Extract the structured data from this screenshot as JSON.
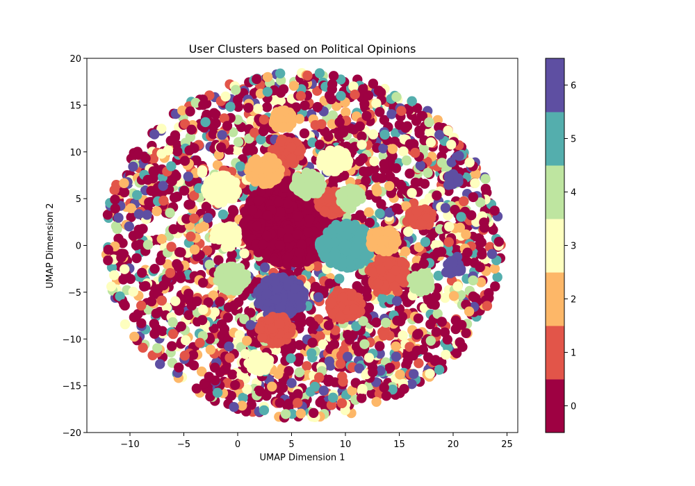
{
  "chart_data": {
    "type": "scatter",
    "title": "User Clusters based on Political Opinions",
    "xlabel": "UMAP Dimension 1",
    "ylabel": "UMAP Dimension 2",
    "xlim": [
      -14,
      26
    ],
    "ylim": [
      -20,
      20
    ],
    "xticks": [
      -10,
      -5,
      0,
      5,
      10,
      15,
      20,
      25
    ],
    "yticks": [
      -20,
      -15,
      -10,
      -5,
      0,
      5,
      10,
      15,
      20
    ],
    "colorbar": {
      "ticks": [
        0,
        1,
        2,
        3,
        4,
        5,
        6
      ],
      "colors": [
        "#9e0142",
        "#e25549",
        "#fdb768",
        "#feffbf",
        "#bee5a0",
        "#54aead",
        "#5e4fa2"
      ]
    },
    "grid": false,
    "marker_size_pt": 10,
    "cloud": {
      "center": [
        6,
        0
      ],
      "radius": 18.5
    },
    "clusters": [
      {
        "cluster": 0,
        "x": 5.0,
        "y": 2.5,
        "r": 4.5
      },
      {
        "cluster": 5,
        "x": 10.0,
        "y": 0.0,
        "r": 2.4
      },
      {
        "cluster": 6,
        "x": 4.0,
        "y": -5.5,
        "r": 2.2
      },
      {
        "cluster": 1,
        "x": 14.0,
        "y": -3.0,
        "r": 1.8
      },
      {
        "cluster": 1,
        "x": 10.0,
        "y": -6.5,
        "r": 1.5
      },
      {
        "cluster": 1,
        "x": 3.5,
        "y": -9.0,
        "r": 1.5
      },
      {
        "cluster": 1,
        "x": 4.5,
        "y": 10.0,
        "r": 1.4
      },
      {
        "cluster": 1,
        "x": 8.8,
        "y": 4.6,
        "r": 1.3
      },
      {
        "cluster": 1,
        "x": 17.0,
        "y": 3.0,
        "r": 1.1
      },
      {
        "cluster": 2,
        "x": 2.5,
        "y": 8.0,
        "r": 1.5
      },
      {
        "cluster": 2,
        "x": 13.5,
        "y": 0.5,
        "r": 1.3
      },
      {
        "cluster": 2,
        "x": 4.2,
        "y": 13.5,
        "r": 1.0
      },
      {
        "cluster": 3,
        "x": -1.5,
        "y": 6.0,
        "r": 1.5
      },
      {
        "cluster": 3,
        "x": 9.0,
        "y": 9.0,
        "r": 1.3
      },
      {
        "cluster": 3,
        "x": -1.0,
        "y": 1.0,
        "r": 1.2
      },
      {
        "cluster": 3,
        "x": 2.0,
        "y": -12.5,
        "r": 1.0
      },
      {
        "cluster": 4,
        "x": 6.5,
        "y": 6.5,
        "r": 1.3
      },
      {
        "cluster": 4,
        "x": -0.5,
        "y": -3.5,
        "r": 1.4
      },
      {
        "cluster": 4,
        "x": 17.0,
        "y": -4.0,
        "r": 1.0
      },
      {
        "cluster": 4,
        "x": 10.5,
        "y": 5.0,
        "r": 1.1
      },
      {
        "cluster": 6,
        "x": 20.0,
        "y": -2.5,
        "r": 0.8
      },
      {
        "cluster": 6,
        "x": 20.0,
        "y": 7.0,
        "r": 0.7
      }
    ],
    "background_weights": [
      0.45,
      0.1,
      0.1,
      0.1,
      0.08,
      0.09,
      0.08
    ]
  }
}
